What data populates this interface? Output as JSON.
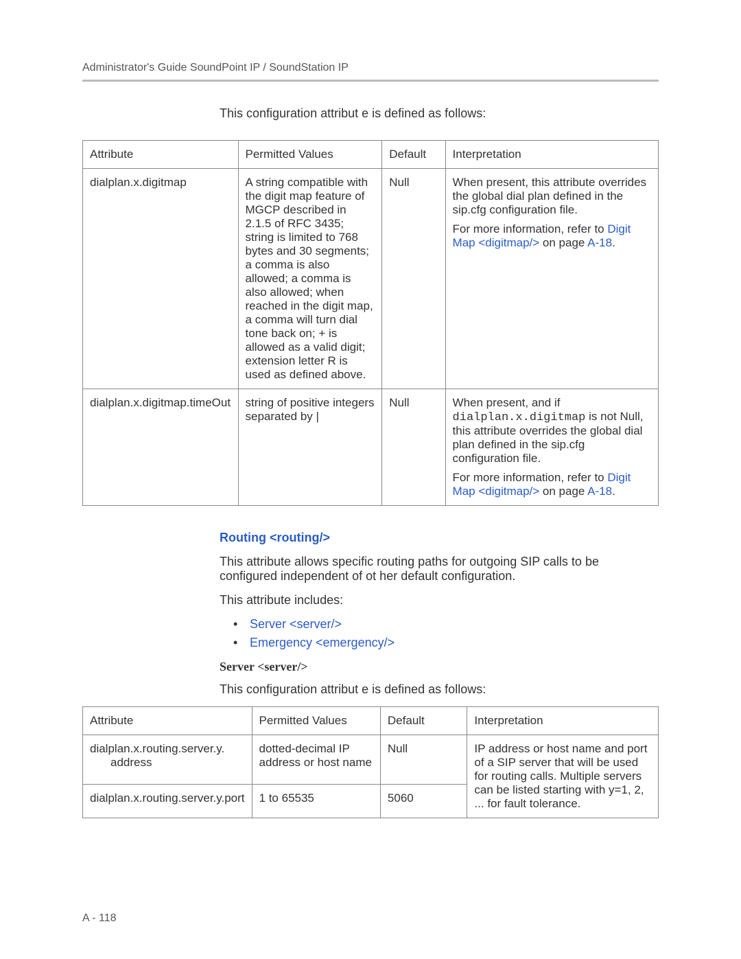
{
  "header": {
    "title": "Administrator's Guide SoundPoint IP / SoundStation IP"
  },
  "intro1": "This configuration attribut e is defined as follows:",
  "table1": {
    "headers": {
      "attribute": "Attribute",
      "values": "Permitted Values",
      "default": "Default",
      "interpretation": "Interpretation"
    },
    "rows": {
      "r0": {
        "attribute": "dialplan.x.digitmap",
        "values": "A string compatible with the digit map feature of MGCP described in 2.1.5 of RFC 3435; string is limited to 768 bytes and 30 segments; a comma is also allowed; a comma is also allowed; when reached in the digit map, a comma will turn dial tone back on; + is allowed as a valid digit; extension letter R is used as defined above.",
        "default": "Null",
        "interp_p1": "When present, this attribute overrides the global dial plan defined in the sip.cfg configuration file.",
        "interp_p2_a": "For more information, refer to ",
        "interp_p2_link": "Digit Map <digitmap/>",
        "interp_p2_b": " on page ",
        "interp_p2_pg": "A-18",
        "interp_p2_c": "."
      },
      "r1": {
        "attribute": "dialplan.x.digitmap.timeOut",
        "values": "string of positive integers separated by |",
        "default": "Null",
        "interp_p1_a": "When present, and if ",
        "interp_p1_mono": "dialplan.x.digitmap",
        "interp_p1_b": " is not Null, this attribute overrides the global dial plan defined in the sip.cfg configuration file.",
        "interp_p2_a": "For more information, refer to ",
        "interp_p2_link": "Digit Map <digitmap/>",
        "interp_p2_b": " on page ",
        "interp_p2_pg": "A-18",
        "interp_p2_c": "."
      }
    }
  },
  "routing": {
    "heading": "Routing <routing/>",
    "para1": "This attribute allows specific routing paths for outgoing SIP calls to be configured independent of ot her default configuration.",
    "includes_intro": "This attribute includes:",
    "bullets": {
      "b0": "Server <server/>",
      "b1": "Emergency <emergency/>"
    }
  },
  "server": {
    "subheading": "Server <server/>",
    "intro": "This configuration attribut e is defined as follows:"
  },
  "table2": {
    "headers": {
      "attribute": "Attribute",
      "values": "Permitted Values",
      "default": "Default",
      "interpretation": "Interpretation"
    },
    "rows": {
      "r0": {
        "attr_l1": "dialplan.x.routing.server.y.",
        "attr_l2": "address",
        "values": "dotted-decimal IP address or host name",
        "default": "Null"
      },
      "r1": {
        "attribute": "dialplan.x.routing.server.y.port",
        "values": "1 to 65535",
        "default": "5060"
      },
      "interp": "IP address or host name and port of a SIP server that will be used for routing calls. Multiple servers can be listed starting with y=1, 2, ... for fault tolerance."
    }
  },
  "page_number": "A - 118"
}
